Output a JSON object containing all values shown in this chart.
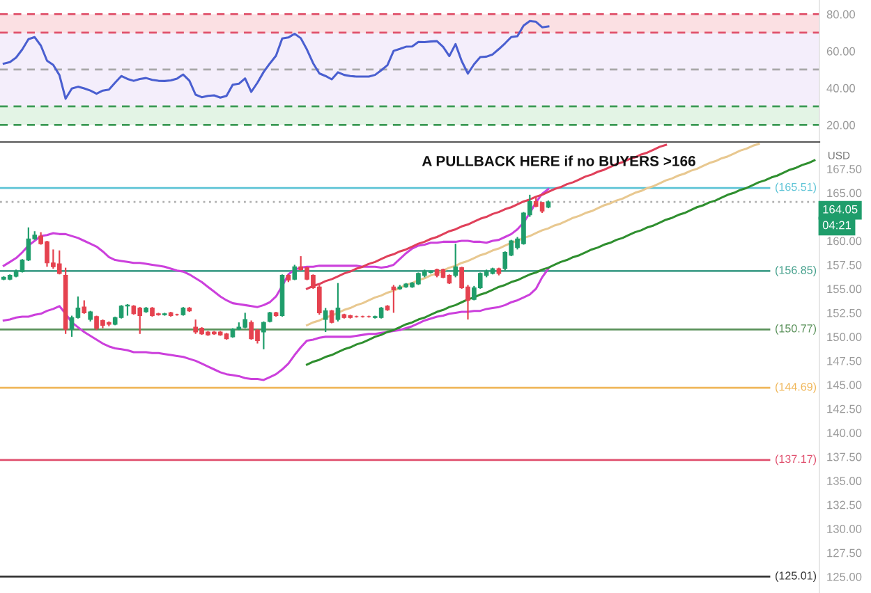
{
  "chart_data": [
    {
      "type": "line",
      "categories": [
        null,
        null,
        null,
        null,
        null,
        null,
        null,
        null,
        null,
        null,
        null,
        null,
        null,
        null,
        null,
        null,
        null,
        null,
        null,
        null,
        null,
        null,
        null,
        null,
        null,
        null,
        null,
        null,
        null,
        null,
        null,
        null,
        null,
        null,
        null,
        null,
        null,
        null,
        null,
        null,
        null,
        null,
        null,
        null,
        null,
        null,
        null,
        null,
        null,
        null,
        null,
        null,
        null,
        null,
        null,
        null,
        null,
        null,
        null,
        null,
        null,
        null,
        null,
        null,
        null,
        null,
        null,
        null,
        null,
        null,
        null,
        null,
        null,
        null,
        null,
        null,
        null,
        null,
        null,
        null,
        null,
        null,
        null,
        null,
        null,
        null,
        null,
        null,
        null,
        null,
        null,
        null,
        null,
        null,
        null,
        null,
        null,
        null,
        null,
        null,
        null,
        null,
        null,
        null,
        null,
        null,
        null,
        null,
        null,
        null,
        null,
        null,
        null,
        null,
        null,
        null,
        null,
        null,
        null,
        null,
        null,
        null,
        null,
        null,
        null,
        null,
        null,
        null,
        null,
        null,
        null,
        null
      ],
      "series": [
        {
          "color": "#4a5fd0",
          "values": [
            53.2,
            54.0,
            56.5,
            60.9,
            66.5,
            67.6,
            63.0,
            54.8,
            52.5,
            47.0,
            34.2,
            39.7,
            40.7,
            39.8,
            38.6,
            36.9,
            38.6,
            39.1,
            42.9,
            46.5,
            44.9,
            43.9,
            44.9,
            45.4,
            44.4,
            43.9,
            43.8,
            44.1,
            45.1,
            47.3,
            44.0,
            36.4,
            35.0,
            35.7,
            36.0,
            34.8,
            35.7,
            41.8,
            42.3,
            45.2,
            37.9,
            42.9,
            48.7,
            53.3,
            57.5,
            66.9,
            67.4,
            69.4,
            67.0,
            60.8,
            53.4,
            47.9,
            46.5,
            44.7,
            48.5,
            47.1,
            46.5,
            46.2,
            46.2,
            46.2,
            47.1,
            49.6,
            52.4,
            60.1,
            61.2,
            62.4,
            62.5,
            65.0,
            64.9,
            65.2,
            65.4,
            62.3,
            57.3,
            63.8,
            54.6,
            47.8,
            52.9,
            56.8,
            57.0,
            58.2,
            61.1,
            64.2,
            67.6,
            68.1,
            73.8,
            76.3,
            75.9,
            72.9,
            73.4,
            null,
            null,
            null,
            null,
            null,
            null,
            null,
            null,
            null,
            null,
            null,
            null,
            null,
            null,
            null,
            null,
            null,
            null,
            null,
            null,
            null,
            null,
            null,
            null,
            null,
            null,
            null,
            null,
            null,
            null,
            null,
            null,
            null,
            null,
            null,
            null,
            null,
            null,
            null,
            null,
            null,
            null,
            null
          ]
        }
      ],
      "ylim": [
        11.5,
        87.7
      ],
      "yticks": [
        {
          "value": 80,
          "label": "80.00"
        },
        {
          "value": 60,
          "label": "60.00"
        },
        {
          "value": 40,
          "label": "40.00"
        },
        {
          "value": 20,
          "label": "20.00"
        }
      ],
      "bands": [
        {
          "axis": "y",
          "from": 70,
          "to": 80,
          "color": "#fbe0e3"
        },
        {
          "axis": "y",
          "from": 30,
          "to": 70,
          "color": "#f4eefb"
        },
        {
          "axis": "y",
          "from": 20,
          "to": 30,
          "color": "#e3f4e5"
        }
      ],
      "ref_lines": [
        {
          "axis": "y",
          "value": 80,
          "color": "#e0506a",
          "line_style": "dashed"
        },
        {
          "axis": "y",
          "value": 70,
          "color": "#e0506a",
          "line_style": "dashed"
        },
        {
          "axis": "y",
          "value": 50,
          "color": "#a8a8a8",
          "line_style": "dashed"
        },
        {
          "axis": "y",
          "value": 30,
          "color": "#3c9a55",
          "line_style": "dashed"
        },
        {
          "axis": "y",
          "value": 20,
          "color": "#3c9a55",
          "line_style": "dashed"
        }
      ],
      "tick_labels": "y"
    },
    {
      "type": "candlestick",
      "categories": [
        null,
        null,
        null,
        null,
        null,
        null,
        null,
        null,
        null,
        null,
        null,
        null,
        null,
        null,
        null,
        null,
        null,
        null,
        null,
        null,
        null,
        null,
        null,
        null,
        null,
        null,
        null,
        null,
        null,
        null,
        null,
        null,
        null,
        null,
        null,
        null,
        null,
        null,
        null,
        null,
        null,
        null,
        null,
        null,
        null,
        null,
        null,
        null,
        null,
        null,
        null,
        null,
        null,
        null,
        null,
        null,
        null,
        null,
        null,
        null,
        null,
        null,
        null,
        null,
        null,
        null,
        null,
        null,
        null,
        null,
        null,
        null,
        null,
        null,
        null,
        null,
        null,
        null,
        null,
        null,
        null,
        null,
        null,
        null,
        null,
        null,
        null,
        null,
        null,
        null,
        null,
        null,
        null,
        null,
        null,
        null,
        null,
        null,
        null,
        null,
        null,
        null,
        null,
        null,
        null,
        null,
        null,
        null,
        null,
        null,
        null,
        null,
        null,
        null,
        null,
        null,
        null,
        null,
        null,
        null,
        null,
        null,
        null,
        null,
        null,
        null,
        null,
        null,
        null,
        null,
        null,
        null
      ],
      "ohlc": [
        [
          156.0,
          156.3,
          155.9,
          156.2
        ],
        [
          156.0,
          156.5,
          155.9,
          156.4
        ],
        [
          156.3,
          157.0,
          156.2,
          156.8
        ],
        [
          156.8,
          158.1,
          156.7,
          158.0
        ],
        [
          158.0,
          161.4,
          157.9,
          160.2
        ],
        [
          160.2,
          161.0,
          160.1,
          160.6
        ],
        [
          160.5,
          160.9,
          159.6,
          159.7
        ],
        [
          159.9,
          160.0,
          157.3,
          157.7
        ],
        [
          157.7,
          159.1,
          157.1,
          157.3
        ],
        [
          157.6,
          159.0,
          156.5,
          156.6
        ],
        [
          156.4,
          157.2,
          150.3,
          150.8
        ],
        [
          150.8,
          152.2,
          150.0,
          152.0
        ],
        [
          152.0,
          154.2,
          151.9,
          153.0
        ],
        [
          153.1,
          153.8,
          152.4,
          152.5
        ],
        [
          151.8,
          152.7,
          151.6,
          152.6
        ],
        [
          152.1,
          152.2,
          150.7,
          150.9
        ],
        [
          151.7,
          151.8,
          150.9,
          151.2
        ],
        [
          151.5,
          151.6,
          151.1,
          151.3
        ],
        [
          151.3,
          152.1,
          151.2,
          152.0
        ],
        [
          152.0,
          153.3,
          151.9,
          153.2
        ],
        [
          153.2,
          153.4,
          152.2,
          153.3
        ],
        [
          153.2,
          153.3,
          152.3,
          152.4
        ],
        [
          153.0,
          153.1,
          150.3,
          152.2
        ],
        [
          152.6,
          153.1,
          152.5,
          153.0
        ],
        [
          153.0,
          153.1,
          152.1,
          152.2
        ],
        [
          152.4,
          152.5,
          152.2,
          152.3
        ],
        [
          152.3,
          152.5,
          152.2,
          152.4
        ],
        [
          152.5,
          152.6,
          152.1,
          152.2
        ],
        [
          152.3,
          152.4,
          152.2,
          152.3
        ],
        [
          152.3,
          153.1,
          152.2,
          153.0
        ],
        [
          153.0,
          153.1,
          152.6,
          152.7
        ],
        [
          151.0,
          151.8,
          150.3,
          150.5
        ],
        [
          150.9,
          151.0,
          150.2,
          150.3
        ],
        [
          150.5,
          150.6,
          150.1,
          150.2
        ],
        [
          150.5,
          150.6,
          150.2,
          150.3
        ],
        [
          150.5,
          150.6,
          150.1,
          150.2
        ],
        [
          150.3,
          150.4,
          149.7,
          149.8
        ],
        [
          150.0,
          150.9,
          149.9,
          150.8
        ],
        [
          150.8,
          151.5,
          150.7,
          151.0
        ],
        [
          151.0,
          152.5,
          150.9,
          151.8
        ],
        [
          151.5,
          151.7,
          149.7,
          149.8
        ],
        [
          150.7,
          150.8,
          149.3,
          149.6
        ],
        [
          150.5,
          151.6,
          148.7,
          151.5
        ],
        [
          151.6,
          152.6,
          151.5,
          152.5
        ],
        [
          152.5,
          152.6,
          152.1,
          152.2
        ],
        [
          152.2,
          156.5,
          152.1,
          156.4
        ],
        [
          156.4,
          156.5,
          155.7,
          155.9
        ],
        [
          156.0,
          157.5,
          155.9,
          157.3
        ],
        [
          157.3,
          158.4,
          156.9,
          157.0
        ],
        [
          157.2,
          157.3,
          155.9,
          156.0
        ],
        [
          156.4,
          156.5,
          155.0,
          155.1
        ],
        [
          155.2,
          155.4,
          152.3,
          152.5
        ],
        [
          151.8,
          153.0,
          150.5,
          152.7
        ],
        [
          152.7,
          152.8,
          151.4,
          151.5
        ],
        [
          151.8,
          155.6,
          151.6,
          153.0
        ],
        [
          152.3,
          152.4,
          151.9,
          152.0
        ],
        [
          152.2,
          152.3,
          151.9,
          152.0
        ],
        [
          152.1,
          152.2,
          152.0,
          152.1
        ],
        [
          152.1,
          152.2,
          152.0,
          152.1
        ],
        [
          152.1,
          152.2,
          152.0,
          152.1
        ],
        [
          152.0,
          152.2,
          151.9,
          152.1
        ],
        [
          152.0,
          153.1,
          151.9,
          153.0
        ],
        [
          153.2,
          153.3,
          152.7,
          152.8
        ],
        [
          155.2,
          155.4,
          152.5,
          154.9
        ],
        [
          155.0,
          155.4,
          154.9,
          155.2
        ],
        [
          155.2,
          155.6,
          155.1,
          155.5
        ],
        [
          155.2,
          155.7,
          155.1,
          155.6
        ],
        [
          155.5,
          156.7,
          155.4,
          156.6
        ],
        [
          156.4,
          157.0,
          156.2,
          156.8
        ],
        [
          156.7,
          156.9,
          156.6,
          156.8
        ],
        [
          157.0,
          157.1,
          156.2,
          156.4
        ],
        [
          157.0,
          157.1,
          156.1,
          156.2
        ],
        [
          156.4,
          156.5,
          155.5,
          155.6
        ],
        [
          156.4,
          159.7,
          156.2,
          157.3
        ],
        [
          157.2,
          157.3,
          155.0,
          155.1
        ],
        [
          155.2,
          155.4,
          151.8,
          153.8
        ],
        [
          153.9,
          155.3,
          153.8,
          155.1
        ],
        [
          155.1,
          156.7,
          155.0,
          156.6
        ],
        [
          156.4,
          157.0,
          156.2,
          156.8
        ],
        [
          156.6,
          157.2,
          156.5,
          157.1
        ],
        [
          157.1,
          157.2,
          156.4,
          156.6
        ],
        [
          157.1,
          158.9,
          156.9,
          158.8
        ],
        [
          158.5,
          160.1,
          158.4,
          160.0
        ],
        [
          159.3,
          160.4,
          159.1,
          160.2
        ],
        [
          159.7,
          163.0,
          159.6,
          162.9
        ],
        [
          162.7,
          164.8,
          162.5,
          164.1
        ],
        [
          164.1,
          164.6,
          163.5,
          163.6
        ],
        [
          164.0,
          164.0,
          162.9,
          163.1
        ],
        [
          163.5,
          164.2,
          163.4,
          164.05
        ],
        null,
        null,
        null,
        null,
        null,
        null,
        null,
        null,
        null,
        null,
        null,
        null,
        null,
        null,
        null,
        null,
        null,
        null,
        null,
        null,
        null,
        null,
        null,
        null,
        null,
        null,
        null,
        null,
        null,
        null,
        null,
        null,
        null,
        null,
        null,
        null,
        null,
        null,
        null,
        null,
        null,
        null,
        null
      ],
      "series": [
        {
          "type": "line",
          "color": "#cc40dc",
          "values": [
            157.4,
            157.8,
            158.2,
            158.8,
            159.5,
            160.0,
            160.5,
            160.6,
            160.8,
            160.7,
            160.7,
            160.5,
            160.3,
            160.0,
            159.7,
            159.4,
            158.9,
            158.3,
            158.0,
            157.9,
            157.8,
            157.7,
            157.7,
            157.6,
            157.5,
            157.4,
            157.3,
            157.1,
            156.9,
            156.8,
            156.5,
            156.1,
            155.7,
            155.2,
            154.7,
            154.2,
            153.8,
            153.5,
            153.4,
            153.3,
            153.2,
            153.1,
            153.3,
            153.6,
            154.2,
            155.3,
            156.5,
            157.0,
            157.2,
            157.3,
            157.3,
            157.4,
            157.4,
            157.4,
            157.4,
            157.4,
            157.4,
            157.4,
            157.3,
            157.3,
            157.3,
            157.2,
            157.3,
            157.5,
            158.1,
            158.7,
            159.2,
            159.5,
            159.6,
            159.8,
            159.8,
            159.9,
            159.9,
            159.9,
            160.0,
            160.0,
            159.9,
            159.9,
            159.8,
            160.0,
            160.1,
            160.4,
            160.7,
            161.2,
            161.9,
            162.9,
            164.0,
            164.9,
            165.4,
            null,
            null,
            null,
            null,
            null,
            null,
            null,
            null,
            null,
            null,
            null,
            null,
            null,
            null,
            null,
            null,
            null,
            null,
            null,
            null,
            null,
            null,
            null,
            null,
            null,
            null,
            null,
            null,
            null,
            null,
            null,
            null,
            null,
            null,
            null,
            null,
            null,
            null,
            null,
            null,
            null,
            null,
            null
          ]
        },
        {
          "type": "line",
          "color": "#cc40dc",
          "values": [
            151.7,
            151.8,
            152.0,
            152.1,
            152.1,
            152.3,
            152.4,
            152.7,
            152.9,
            153.2,
            152.4,
            151.5,
            151.0,
            150.5,
            150.1,
            149.7,
            149.3,
            149.0,
            148.8,
            148.7,
            148.6,
            148.4,
            148.4,
            148.4,
            148.3,
            148.3,
            148.2,
            148.1,
            148.0,
            147.9,
            147.7,
            147.5,
            147.2,
            146.9,
            146.6,
            146.3,
            146.1,
            146.0,
            145.9,
            145.7,
            145.6,
            145.6,
            145.5,
            145.8,
            146.1,
            146.6,
            147.2,
            148.1,
            148.9,
            149.6,
            149.7,
            149.9,
            150.0,
            150.0,
            150.0,
            150.0,
            150.0,
            150.1,
            150.2,
            150.3,
            150.3,
            150.4,
            150.5,
            150.6,
            150.7,
            150.9,
            151.1,
            151.4,
            151.7,
            151.9,
            152.1,
            152.2,
            152.4,
            152.5,
            152.6,
            152.6,
            152.7,
            152.7,
            152.9,
            153.0,
            153.1,
            153.3,
            153.6,
            153.8,
            154.1,
            154.4,
            155.0,
            156.2,
            157.1,
            null,
            null,
            null,
            null,
            null,
            null,
            null,
            null,
            null,
            null,
            null,
            null,
            null,
            null,
            null,
            null,
            null,
            null,
            null,
            null,
            null,
            null,
            null,
            null,
            null,
            null,
            null,
            null,
            null,
            null,
            null,
            null,
            null,
            null,
            null,
            null,
            null,
            null,
            null,
            null,
            null,
            null,
            null
          ]
        },
        {
          "type": "line",
          "color": "#e0405a",
          "values": [
            null,
            null,
            null,
            null,
            null,
            null,
            null,
            null,
            null,
            null,
            null,
            null,
            null,
            null,
            null,
            null,
            null,
            null,
            null,
            null,
            null,
            null,
            null,
            null,
            null,
            null,
            null,
            null,
            null,
            null,
            null,
            null,
            null,
            null,
            null,
            null,
            null,
            null,
            null,
            null,
            null,
            null,
            null,
            null,
            null,
            null,
            null,
            null,
            null,
            155.0,
            155.3,
            155.5,
            155.8,
            156.0,
            156.3,
            156.6,
            156.8,
            157.1,
            157.3,
            157.6,
            157.8,
            158.1,
            158.4,
            158.6,
            158.9,
            159.1,
            159.4,
            159.7,
            159.9,
            160.2,
            160.4,
            160.7,
            161.0,
            161.2,
            161.5,
            161.7,
            162.0,
            162.3,
            162.5,
            162.8,
            163.0,
            163.3,
            163.5,
            163.8,
            164.1,
            164.3,
            164.6,
            164.8,
            165.1,
            165.4,
            165.6,
            165.9,
            166.1,
            166.4,
            166.7,
            166.9,
            167.2,
            167.4,
            167.7,
            168.0,
            168.2,
            168.5,
            168.7,
            169.0,
            169.2,
            169.5,
            169.8,
            170.0,
            null,
            null,
            null,
            null,
            null,
            null,
            null,
            null,
            null,
            null,
            null,
            null,
            null,
            null,
            null,
            null,
            null,
            null,
            null,
            null,
            null,
            null,
            null,
            null
          ]
        },
        {
          "type": "line",
          "color": "#e8c890",
          "values": [
            null,
            null,
            null,
            null,
            null,
            null,
            null,
            null,
            null,
            null,
            null,
            null,
            null,
            null,
            null,
            null,
            null,
            null,
            null,
            null,
            null,
            null,
            null,
            null,
            null,
            null,
            null,
            null,
            null,
            null,
            null,
            null,
            null,
            null,
            null,
            null,
            null,
            null,
            null,
            null,
            null,
            null,
            null,
            null,
            null,
            null,
            null,
            null,
            null,
            151.2,
            151.5,
            151.7,
            152.0,
            152.2,
            152.5,
            152.8,
            153.0,
            153.3,
            153.5,
            153.8,
            154.1,
            154.3,
            154.6,
            154.8,
            155.1,
            155.4,
            155.6,
            155.9,
            156.1,
            156.4,
            156.6,
            156.9,
            157.2,
            157.4,
            157.7,
            157.9,
            158.2,
            158.5,
            158.7,
            159.0,
            159.2,
            159.5,
            159.8,
            160.0,
            160.3,
            160.5,
            160.8,
            161.1,
            161.3,
            161.6,
            161.8,
            162.1,
            162.4,
            162.6,
            162.9,
            163.1,
            163.4,
            163.7,
            163.9,
            164.2,
            164.4,
            164.7,
            165.0,
            165.2,
            165.5,
            165.7,
            166.0,
            166.3,
            166.5,
            166.8,
            167.0,
            167.3,
            167.5,
            167.8,
            168.1,
            168.3,
            168.6,
            168.8,
            169.1,
            169.4,
            169.6,
            169.9,
            170.1,
            null,
            null,
            null,
            null,
            null,
            null,
            null,
            null,
            null
          ]
        },
        {
          "type": "line",
          "color": "#2f8f2f",
          "values": [
            null,
            null,
            null,
            null,
            null,
            null,
            null,
            null,
            null,
            null,
            null,
            null,
            null,
            null,
            null,
            null,
            null,
            null,
            null,
            null,
            null,
            null,
            null,
            null,
            null,
            null,
            null,
            null,
            null,
            null,
            null,
            null,
            null,
            null,
            null,
            null,
            null,
            null,
            null,
            null,
            null,
            null,
            null,
            null,
            null,
            null,
            null,
            null,
            null,
            147.1,
            147.4,
            147.6,
            147.9,
            148.1,
            148.4,
            148.7,
            148.9,
            149.2,
            149.4,
            149.7,
            150.0,
            150.2,
            150.5,
            150.7,
            151.0,
            151.3,
            151.5,
            151.8,
            152.0,
            152.3,
            152.6,
            152.8,
            153.1,
            153.3,
            153.6,
            153.9,
            154.1,
            154.4,
            154.6,
            154.9,
            155.2,
            155.4,
            155.7,
            155.9,
            156.2,
            156.5,
            156.7,
            157.0,
            157.2,
            157.5,
            157.8,
            158.0,
            158.3,
            158.5,
            158.8,
            159.1,
            159.3,
            159.6,
            159.8,
            160.1,
            160.3,
            160.6,
            160.9,
            161.1,
            161.4,
            161.6,
            161.9,
            162.2,
            162.4,
            162.7,
            162.9,
            163.2,
            163.5,
            163.7,
            164.0,
            164.2,
            164.5,
            164.8,
            165.0,
            165.3,
            165.5,
            165.8,
            166.1,
            166.3,
            166.6,
            166.8,
            167.1,
            167.4,
            167.6,
            167.9,
            168.1,
            168.4
          ]
        }
      ],
      "ylim": [
        123.3,
        170.3
      ],
      "yticks": [
        {
          "value": 125,
          "label": "125.00"
        },
        {
          "value": 127.5,
          "label": "127.50"
        },
        {
          "value": 130,
          "label": "130.00"
        },
        {
          "value": 132.5,
          "label": "132.50"
        },
        {
          "value": 135,
          "label": "135.00"
        },
        {
          "value": 137.5,
          "label": "137.50"
        },
        {
          "value": 140,
          "label": "140.00"
        },
        {
          "value": 142.5,
          "label": "142.50"
        },
        {
          "value": 145,
          "label": "145.00"
        },
        {
          "value": 147.5,
          "label": "147.50"
        },
        {
          "value": 150,
          "label": "150.00"
        },
        {
          "value": 152.5,
          "label": "152.50"
        },
        {
          "value": 155,
          "label": "155.00"
        },
        {
          "value": 157.5,
          "label": "157.50"
        },
        {
          "value": 160,
          "label": "160.00"
        },
        {
          "value": 165,
          "label": "165.00"
        },
        {
          "value": 167.5,
          "label": "167.50"
        }
      ],
      "ref_lines": [
        {
          "axis": "y",
          "value": 165.51,
          "label": "(165.51)",
          "color": "#5ec4d6"
        },
        {
          "axis": "y",
          "value": 164.05,
          "label": "164.05",
          "color": "#b0b0b0",
          "line_style": "dotted"
        },
        {
          "axis": "y",
          "value": 156.85,
          "label": "(156.85)",
          "color": "#45a08c"
        },
        {
          "axis": "y",
          "value": 150.77,
          "label": "(150.77)",
          "color": "#5a915a"
        },
        {
          "axis": "y",
          "value": 144.69,
          "label": "(144.69)",
          "color": "#f0b75a"
        },
        {
          "axis": "y",
          "value": 137.17,
          "label": "(137.17)",
          "color": "#e0506e"
        },
        {
          "axis": "y",
          "value": 125.01,
          "label": "(125.01)",
          "color": "#333333"
        }
      ],
      "annotations": [
        "A PULLBACK HERE if no BUYERS >166",
        "04:21"
      ],
      "ylabel": "USD",
      "tick_labels": "y"
    }
  ]
}
